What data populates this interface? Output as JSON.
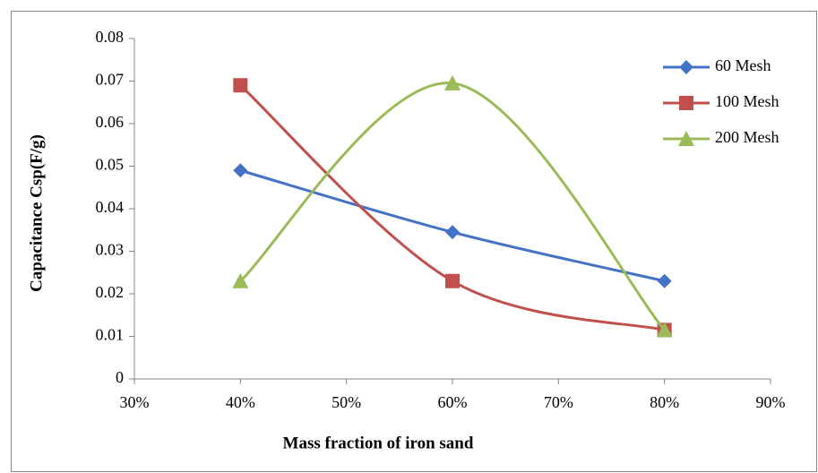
{
  "chart_data": {
    "type": "line",
    "smooth": true,
    "x_label": "Mass fraction of iron sand",
    "y_label": "Capacitance Csp(F/g)",
    "x": [
      40,
      60,
      80
    ],
    "series": [
      {
        "name": "60 Mesh",
        "color": "#4472c4",
        "marker": "diamond",
        "values": [
          0.049,
          0.0345,
          0.023
        ]
      },
      {
        "name": "100 Mesh",
        "color": "#c0504d",
        "marker": "square",
        "values": [
          0.069,
          0.023,
          0.0115
        ]
      },
      {
        "name": "200 Mesh",
        "color": "#9bbb59",
        "marker": "triangle",
        "values": [
          0.023,
          0.0695,
          0.0115
        ]
      }
    ],
    "xlim": [
      30,
      90
    ],
    "xticks": [
      {
        "value": 30,
        "label": "30%"
      },
      {
        "value": 40,
        "label": "40%"
      },
      {
        "value": 50,
        "label": "50%"
      },
      {
        "value": 60,
        "label": "60%"
      },
      {
        "value": 70,
        "label": "70%"
      },
      {
        "value": 80,
        "label": "80%"
      },
      {
        "value": 90,
        "label": "90%"
      }
    ],
    "ylim": [
      0,
      0.08
    ],
    "yticks": [
      0,
      0.01,
      0.02,
      0.03,
      0.04,
      0.05,
      0.06,
      0.07,
      0.08
    ],
    "grid": false,
    "legend": "top-right"
  }
}
